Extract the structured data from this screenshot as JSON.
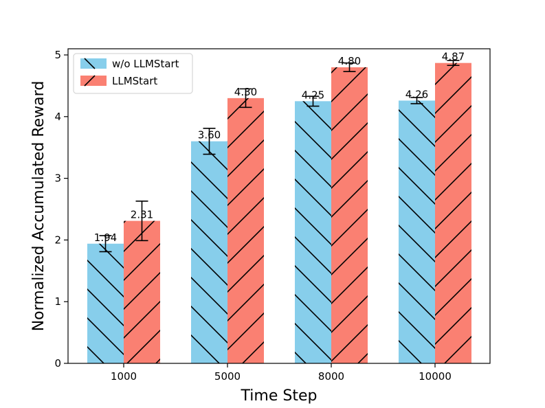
{
  "chart_data": {
    "type": "bar",
    "title": "",
    "xlabel": "Time Step",
    "ylabel": "Normalized Accumulated Reward",
    "categories": [
      "1000",
      "5000",
      "8000",
      "10000"
    ],
    "ylim": [
      0,
      5.1
    ],
    "yticks": [
      "0",
      "1",
      "2",
      "3",
      "4",
      "5"
    ],
    "grid": false,
    "legend_position": "top-left",
    "series": [
      {
        "name": "w/o LLMStart",
        "values": [
          1.94,
          3.6,
          4.25,
          4.26
        ],
        "errors": [
          0.13,
          0.21,
          0.08,
          0.05
        ],
        "labels": [
          "1.94",
          "3.60",
          "4.25",
          "4.26"
        ],
        "color": "#87ceeb",
        "hatch": "backslash"
      },
      {
        "name": "LLMStart",
        "values": [
          2.31,
          4.3,
          4.8,
          4.87
        ],
        "errors": [
          0.32,
          0.15,
          0.07,
          0.04
        ],
        "labels": [
          "2.31",
          "4.30",
          "4.80",
          "4.87"
        ],
        "color": "#fa8072",
        "hatch": "slash"
      }
    ]
  }
}
